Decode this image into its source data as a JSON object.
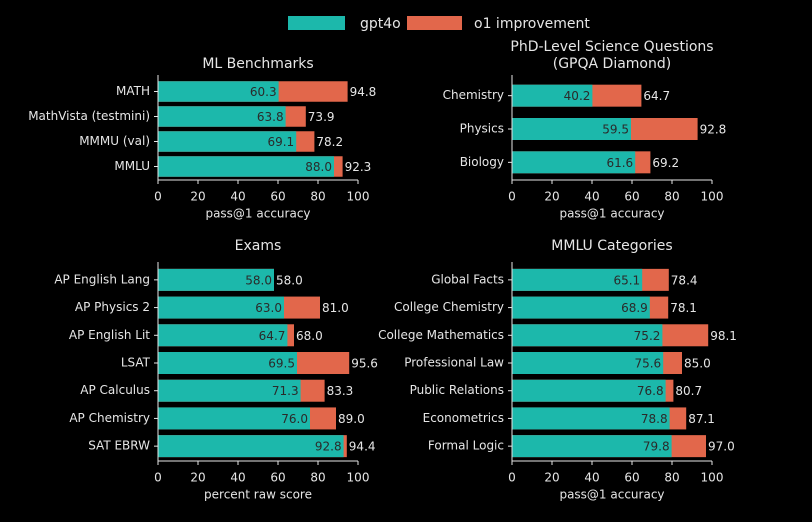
{
  "chart_data": [
    {
      "type": "bar",
      "title": "ML Benchmarks",
      "xlabel": "pass@1 accuracy",
      "categories": [
        "MATH",
        "MathVista (testmini)",
        "MMMU (val)",
        "MMLU"
      ],
      "series": [
        {
          "name": "gpt4o",
          "color": "#1cb8ab",
          "values": [
            60.3,
            63.8,
            69.1,
            88.0
          ],
          "value_labels": [
            "60.3",
            "63.8",
            "69.1",
            "88.0"
          ]
        },
        {
          "name": "o1 improvement",
          "color": "#e2674b",
          "values": [
            94.8,
            73.9,
            78.2,
            92.3
          ],
          "value_labels": [
            "94.8",
            "73.9",
            "78.2",
            "92.3"
          ]
        }
      ],
      "xlim": [
        0,
        100
      ],
      "xticks": [
        0,
        20,
        40,
        60,
        80,
        100
      ]
    },
    {
      "type": "bar",
      "title": "PhD-Level Science Questions",
      "subtitle": "(GPQA Diamond)",
      "xlabel": "pass@1 accuracy",
      "categories": [
        "Chemistry",
        "Physics",
        "Biology"
      ],
      "series": [
        {
          "name": "gpt4o",
          "color": "#1cb8ab",
          "values": [
            40.2,
            59.5,
            61.6
          ],
          "value_labels": [
            "40.2",
            "59.5",
            "61.6"
          ]
        },
        {
          "name": "o1 improvement",
          "color": "#e2674b",
          "values": [
            64.7,
            92.8,
            69.2
          ],
          "value_labels": [
            "64.7",
            "92.8",
            "69.2"
          ]
        }
      ],
      "xlim": [
        0,
        100
      ],
      "xticks": [
        0,
        20,
        40,
        60,
        80,
        100
      ]
    },
    {
      "type": "bar",
      "title": "Exams",
      "xlabel": "percent raw score",
      "categories": [
        "AP English Lang",
        "AP Physics 2",
        "AP English Lit",
        "LSAT",
        "AP Calculus",
        "AP Chemistry",
        "SAT EBRW"
      ],
      "series": [
        {
          "name": "gpt4o",
          "color": "#1cb8ab",
          "values": [
            58.0,
            63.0,
            64.7,
            69.5,
            71.3,
            76.0,
            92.8
          ],
          "value_labels": [
            "58.0",
            "63.0",
            "64.7",
            "69.5",
            "71.3",
            "76.0",
            "92.8"
          ]
        },
        {
          "name": "o1 improvement",
          "color": "#e2674b",
          "values": [
            58.0,
            81.0,
            68.0,
            95.6,
            83.3,
            89.0,
            94.4
          ],
          "value_labels": [
            "58.0",
            "81.0",
            "68.0",
            "95.6",
            "83.3",
            "89.0",
            "94.4"
          ]
        }
      ],
      "xlim": [
        0,
        100
      ],
      "xticks": [
        0,
        20,
        40,
        60,
        80,
        100
      ]
    },
    {
      "type": "bar",
      "title": "MMLU Categories",
      "xlabel": "pass@1 accuracy",
      "categories": [
        "Global Facts",
        "College Chemistry",
        "College Mathematics",
        "Professional Law",
        "Public Relations",
        "Econometrics",
        "Formal Logic"
      ],
      "series": [
        {
          "name": "gpt4o",
          "color": "#1cb8ab",
          "values": [
            65.1,
            68.9,
            75.2,
            75.6,
            76.8,
            78.8,
            79.8
          ],
          "value_labels": [
            "65.1",
            "68.9",
            "75.2",
            "75.6",
            "76.8",
            "78.8",
            "79.8"
          ]
        },
        {
          "name": "o1 improvement",
          "color": "#e2674b",
          "values": [
            78.4,
            78.1,
            98.1,
            85.0,
            80.7,
            87.1,
            97.0
          ],
          "value_labels": [
            "78.4",
            "78.1",
            "98.1",
            "85.0",
            "80.7",
            "87.1",
            "97.0"
          ]
        }
      ],
      "xlim": [
        0,
        100
      ],
      "xticks": [
        0,
        20,
        40,
        60,
        80,
        100
      ]
    }
  ]
}
